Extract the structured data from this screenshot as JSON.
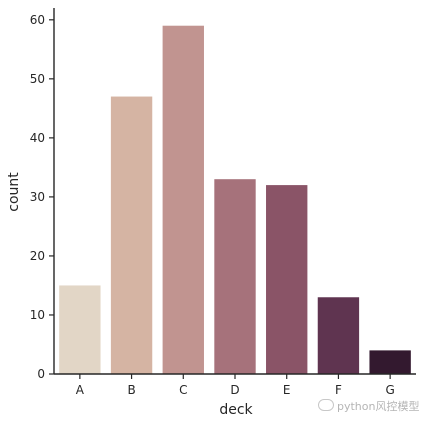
{
  "chart_data": {
    "type": "bar",
    "categories": [
      "A",
      "B",
      "C",
      "D",
      "E",
      "F",
      "G"
    ],
    "values": [
      15,
      47,
      59,
      33,
      32,
      13,
      4
    ],
    "colors": [
      "#e2d6c6",
      "#d5b4a3",
      "#c19490",
      "#a6727b",
      "#8a5467",
      "#5f3450",
      "#33192f"
    ],
    "xlabel": "deck",
    "ylabel": "count",
    "ylim": [
      0,
      62
    ],
    "yticks": [
      0,
      10,
      20,
      30,
      40,
      50,
      60
    ],
    "grid": false
  },
  "watermark": {
    "text": "python风控模型",
    "icon": "wechat-icon"
  }
}
